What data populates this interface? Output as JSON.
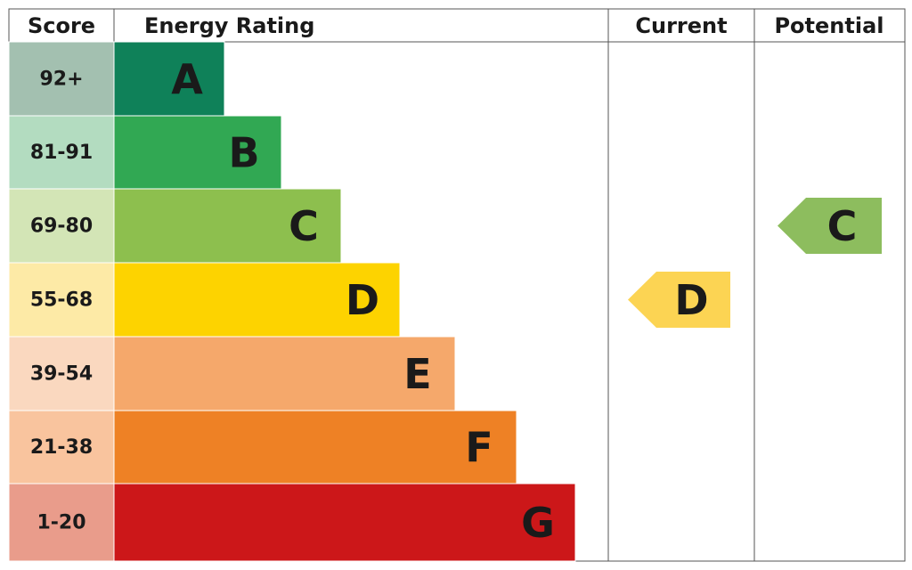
{
  "header": {
    "score": "Score",
    "rating": "Energy Rating",
    "current": "Current",
    "potential": "Potential"
  },
  "rows": [
    {
      "score": "92+",
      "letter": "A",
      "color": "#0f8159",
      "score_color": "#a3c0b0"
    },
    {
      "score": "81-91",
      "letter": "B",
      "color": "#31a853",
      "score_color": "#b3dcc0"
    },
    {
      "score": "69-80",
      "letter": "C",
      "color": "#8dbf4e",
      "score_color": "#d3e5b6"
    },
    {
      "score": "55-68",
      "letter": "D",
      "color": "#fdd300",
      "score_color": "#fdeaa6"
    },
    {
      "score": "39-54",
      "letter": "E",
      "color": "#f5a86b",
      "score_color": "#fad8bf"
    },
    {
      "score": "21-38",
      "letter": "F",
      "color": "#ee8125",
      "score_color": "#f9c49e"
    },
    {
      "score": "1-20",
      "letter": "G",
      "color": "#cc1719",
      "score_color": "#e99c8b"
    }
  ],
  "current": {
    "letter": "D",
    "color": "#fcd453"
  },
  "potential": {
    "letter": "C",
    "color": "#8dbd5e"
  }
}
